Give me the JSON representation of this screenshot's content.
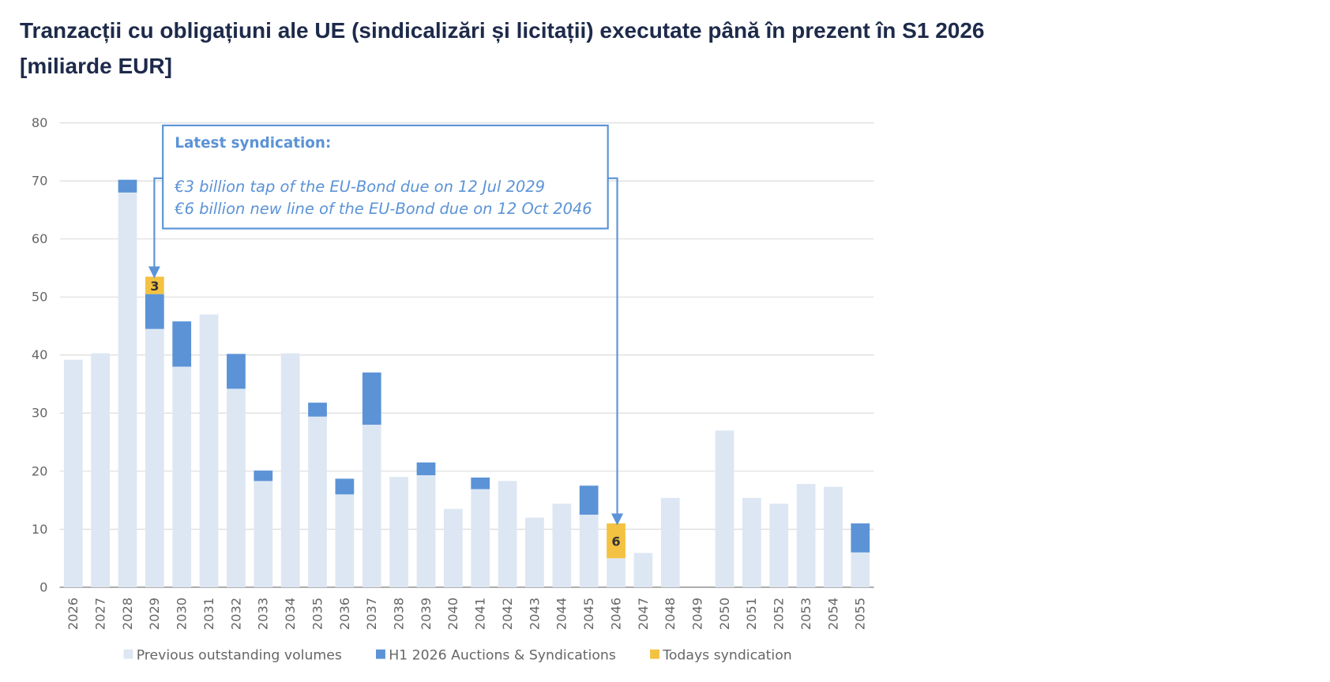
{
  "chart_data": {
    "type": "stacked-bar",
    "title": "Tranzacții cu obligațiuni ale UE (sindicalizări și licitații) executate până în prezent în S1 2026 [miliarde EUR]",
    "categories": [
      "2026",
      "2027",
      "2028",
      "2029",
      "2030",
      "2031",
      "2032",
      "2033",
      "2034",
      "2035",
      "2036",
      "2037",
      "2038",
      "2039",
      "2040",
      "2041",
      "2042",
      "2043",
      "2044",
      "2045",
      "2046",
      "2047",
      "2048",
      "2049",
      "2050",
      "2051",
      "2052",
      "2053",
      "2054",
      "2055"
    ],
    "series": [
      {
        "name": "Previous outstanding volumes",
        "color": "#dde7f3",
        "values": [
          39.2,
          40.3,
          68,
          44.5,
          38,
          47,
          34.2,
          18.3,
          40.3,
          29.4,
          16,
          28,
          19,
          19.3,
          13.5,
          16.9,
          18.3,
          12,
          14.4,
          12.5,
          5,
          5.9,
          15.4,
          0,
          27,
          15.4,
          14.4,
          17.8,
          17.3,
          6
        ]
      },
      {
        "name": "H1 2026 Auctions & Syndications",
        "color": "#5b93d6",
        "values": [
          0,
          0,
          2.2,
          6,
          7.8,
          0,
          6,
          1.8,
          0,
          2.4,
          2.7,
          9,
          0,
          2.2,
          0,
          2,
          0,
          0,
          0,
          5,
          0,
          0,
          0,
          0,
          0,
          0,
          0,
          0,
          0,
          5
        ]
      },
      {
        "name": "Todays syndication",
        "color": "#f4c242",
        "values": [
          0,
          0,
          0,
          3,
          0,
          0,
          0,
          0,
          0,
          0,
          0,
          0,
          0,
          0,
          0,
          0,
          0,
          0,
          0,
          0,
          6,
          0,
          0,
          0,
          0,
          0,
          0,
          0,
          0,
          0
        ],
        "show_labels": true
      }
    ],
    "ylim": [
      0,
      80
    ],
    "yticks": [
      0,
      10,
      20,
      30,
      40,
      50,
      60,
      70,
      80
    ],
    "grid": true,
    "annotation": {
      "title": "Latest syndication:",
      "lines": [
        "€3 billion tap of the EU-Bond due on 12 Jul 2029",
        "€6 billion new line of the EU-Bond due on 12 Oct 2046"
      ]
    }
  }
}
